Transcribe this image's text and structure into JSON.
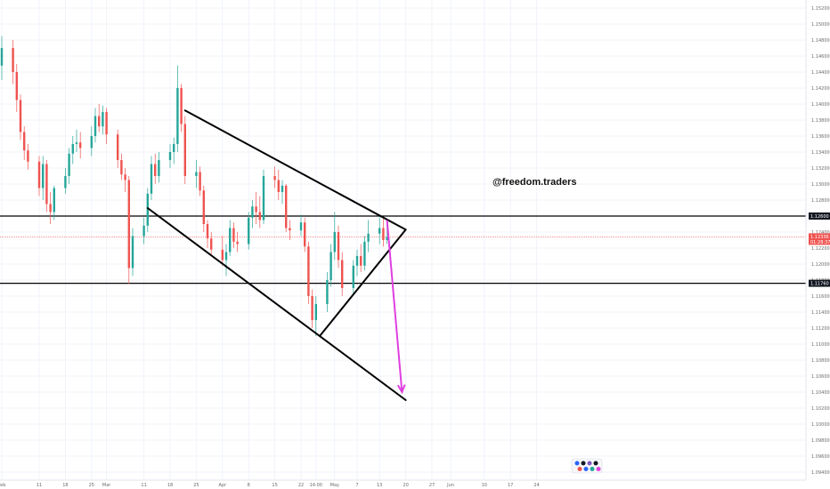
{
  "watermark": "@freedom.traders",
  "chart_data": {
    "type": "candlestick",
    "x_axis": {
      "ticks": [
        {
          "label": "Feb",
          "date": "2019-02-01"
        },
        {
          "label": "11",
          "date": "2019-02-11"
        },
        {
          "label": "18",
          "date": "2019-02-18"
        },
        {
          "label": "25",
          "date": "2019-02-25"
        },
        {
          "label": "Mar",
          "date": "2019-03-01"
        },
        {
          "label": "11",
          "date": "2019-03-11"
        },
        {
          "label": "18",
          "date": "2019-03-18"
        },
        {
          "label": "25",
          "date": "2019-03-25"
        },
        {
          "label": "Apr",
          "date": "2019-04-01"
        },
        {
          "label": "8",
          "date": "2019-04-08"
        },
        {
          "label": "15",
          "date": "2019-04-15"
        },
        {
          "label": "22",
          "date": "2019-04-22"
        },
        {
          "label": "14:00",
          "date": "2019-04-26"
        },
        {
          "label": "May",
          "date": "2019-05-01"
        },
        {
          "label": "7",
          "date": "2019-05-07"
        },
        {
          "label": "13",
          "date": "2019-05-13"
        },
        {
          "label": "20",
          "date": "2019-05-20"
        },
        {
          "label": "27",
          "date": "2019-05-27"
        },
        {
          "label": "Jun",
          "date": "2019-06-01"
        },
        {
          "label": "10",
          "date": "2019-06-10"
        },
        {
          "label": "17",
          "date": "2019-06-17"
        },
        {
          "label": "24",
          "date": "2019-06-24"
        }
      ]
    },
    "y_axis": {
      "range": [
        1.093,
        1.153
      ],
      "ticks": [
        "1.15200",
        "1.15000",
        "1.14800",
        "1.14600",
        "1.14400",
        "1.14200",
        "1.14000",
        "1.13800",
        "1.13600",
        "1.13400",
        "1.13200",
        "1.13000",
        "1.12800",
        "1.12600",
        "1.12400",
        "1.12200",
        "1.12000",
        "1.11800",
        "1.11600",
        "1.11400",
        "1.11200",
        "1.11000",
        "1.10800",
        "1.10600",
        "1.10400",
        "1.10200",
        "1.10000",
        "1.09800",
        "1.09600",
        "1.09400"
      ]
    },
    "horizontal_levels": [
      {
        "price": 1.126,
        "label": "1.12600"
      },
      {
        "price": 1.1176,
        "label": "1.11760"
      }
    ],
    "current_price": {
      "price": 1.1234,
      "label": "1.12336",
      "timer": "01:28:37"
    },
    "trendlines": [
      {
        "from": {
          "date": "2019-03-22",
          "price": 1.1392
        },
        "to": {
          "date": "2019-05-20",
          "price": 1.1243
        }
      },
      {
        "from": {
          "date": "2019-03-12",
          "price": 1.127
        },
        "to": {
          "date": "2019-05-20",
          "price": 1.103
        }
      },
      {
        "from": {
          "date": "2019-04-27",
          "price": 1.111
        },
        "to": {
          "date": "2019-05-20",
          "price": 1.1243
        }
      }
    ],
    "projection_arrow": {
      "from": {
        "date": "2019-05-15",
        "price": 1.1255
      },
      "to": {
        "date": "2019-05-19",
        "price": 1.104
      },
      "color": "#e040e0"
    },
    "colors": {
      "up": "#26a69a",
      "down": "#ef5350",
      "grid": "#f0f3fa"
    },
    "ohlc": [
      [
        "2019-02-01",
        1.1448,
        1.1485,
        1.143,
        1.147
      ],
      [
        "2019-02-04",
        1.147,
        1.148,
        1.1425,
        1.144
      ],
      [
        "2019-02-05",
        1.144,
        1.145,
        1.139,
        1.1405
      ],
      [
        "2019-02-06",
        1.1405,
        1.1412,
        1.1355,
        1.1365
      ],
      [
        "2019-02-07",
        1.1365,
        1.1372,
        1.133,
        1.1342
      ],
      [
        "2019-02-08",
        1.1342,
        1.135,
        1.1318,
        1.1328
      ],
      [
        "2019-02-11",
        1.1328,
        1.1335,
        1.1285,
        1.1295
      ],
      [
        "2019-02-12",
        1.1295,
        1.1335,
        1.128,
        1.1325
      ],
      [
        "2019-02-13",
        1.1325,
        1.133,
        1.1265,
        1.1275
      ],
      [
        "2019-02-14",
        1.1275,
        1.129,
        1.125,
        1.1265
      ],
      [
        "2019-02-15",
        1.1265,
        1.1298,
        1.1255,
        1.1295
      ],
      [
        "2019-02-18",
        1.1295,
        1.132,
        1.1288,
        1.131
      ],
      [
        "2019-02-19",
        1.131,
        1.1345,
        1.13,
        1.1338
      ],
      [
        "2019-02-20",
        1.1338,
        1.136,
        1.1325,
        1.135
      ],
      [
        "2019-02-21",
        1.135,
        1.1368,
        1.134,
        1.1352
      ],
      [
        "2019-02-22",
        1.1352,
        1.1365,
        1.1332,
        1.1345
      ],
      [
        "2019-02-25",
        1.1345,
        1.1372,
        1.1335,
        1.136
      ],
      [
        "2019-02-26",
        1.136,
        1.1395,
        1.1352,
        1.1385
      ],
      [
        "2019-02-27",
        1.1385,
        1.14,
        1.1365,
        1.1372
      ],
      [
        "2019-02-28",
        1.1372,
        1.1398,
        1.1362,
        1.139
      ],
      [
        "2019-03-01",
        1.139,
        1.1395,
        1.135,
        1.1362
      ],
      [
        "2019-03-04",
        1.1362,
        1.1368,
        1.132,
        1.133
      ],
      [
        "2019-03-05",
        1.133,
        1.1338,
        1.1305,
        1.1312
      ],
      [
        "2019-03-06",
        1.1312,
        1.132,
        1.129,
        1.1305
      ],
      [
        "2019-03-07",
        1.1305,
        1.131,
        1.1175,
        1.1195
      ],
      [
        "2019-03-08",
        1.1195,
        1.1245,
        1.1185,
        1.1235
      ],
      [
        "2019-03-11",
        1.1235,
        1.1258,
        1.1225,
        1.1248
      ],
      [
        "2019-03-12",
        1.1248,
        1.1295,
        1.124,
        1.1288
      ],
      [
        "2019-03-13",
        1.1288,
        1.1335,
        1.128,
        1.1325
      ],
      [
        "2019-03-14",
        1.1325,
        1.1338,
        1.13,
        1.131
      ],
      [
        "2019-03-15",
        1.131,
        1.134,
        1.1302,
        1.133
      ],
      [
        "2019-03-18",
        1.133,
        1.135,
        1.132,
        1.134
      ],
      [
        "2019-03-19",
        1.134,
        1.1358,
        1.1325,
        1.135
      ],
      [
        "2019-03-20",
        1.135,
        1.1448,
        1.134,
        1.142
      ],
      [
        "2019-03-21",
        1.142,
        1.1425,
        1.1365,
        1.1375
      ],
      [
        "2019-03-22",
        1.1375,
        1.1385,
        1.13,
        1.131
      ],
      [
        "2019-03-25",
        1.131,
        1.133,
        1.1295,
        1.1315
      ],
      [
        "2019-03-26",
        1.1315,
        1.1322,
        1.1285,
        1.1292
      ],
      [
        "2019-03-27",
        1.1292,
        1.1298,
        1.124,
        1.125
      ],
      [
        "2019-03-28",
        1.125,
        1.1255,
        1.122,
        1.1232
      ],
      [
        "2019-03-29",
        1.1232,
        1.124,
        1.121,
        1.1218
      ],
      [
        "2019-04-01",
        1.1218,
        1.1235,
        1.1198,
        1.1205
      ],
      [
        "2019-04-02",
        1.1205,
        1.1225,
        1.1185,
        1.1215
      ],
      [
        "2019-04-03",
        1.1215,
        1.1255,
        1.121,
        1.1245
      ],
      [
        "2019-04-04",
        1.1245,
        1.1252,
        1.122,
        1.1228
      ],
      [
        "2019-04-05",
        1.1228,
        1.124,
        1.1215,
        1.1225
      ],
      [
        "2019-04-08",
        1.1225,
        1.1265,
        1.1218,
        1.1258
      ],
      [
        "2019-04-09",
        1.1258,
        1.128,
        1.1245,
        1.1272
      ],
      [
        "2019-04-10",
        1.1272,
        1.129,
        1.125,
        1.1265
      ],
      [
        "2019-04-11",
        1.1265,
        1.1285,
        1.1245,
        1.1255
      ],
      [
        "2019-04-12",
        1.1255,
        1.1318,
        1.125,
        1.131
      ],
      [
        "2019-04-15",
        1.131,
        1.1322,
        1.1295,
        1.1305
      ],
      [
        "2019-04-16",
        1.1305,
        1.1318,
        1.128,
        1.129
      ],
      [
        "2019-04-17",
        1.129,
        1.1305,
        1.1275,
        1.1298
      ],
      [
        "2019-04-18",
        1.1298,
        1.13,
        1.124,
        1.1245
      ],
      [
        "2019-04-19",
        1.1245,
        1.1255,
        1.123,
        1.1242
      ],
      [
        "2019-04-22",
        1.1242,
        1.1262,
        1.1235,
        1.1252
      ],
      [
        "2019-04-23",
        1.1252,
        1.1258,
        1.1215,
        1.1222
      ],
      [
        "2019-04-24",
        1.1222,
        1.1228,
        1.115,
        1.116
      ],
      [
        "2019-04-25",
        1.116,
        1.1168,
        1.112,
        1.113
      ],
      [
        "2019-04-26",
        1.113,
        1.116,
        1.111,
        1.115
      ],
      [
        "2019-04-29",
        1.115,
        1.119,
        1.114,
        1.118
      ],
      [
        "2019-04-30",
        1.118,
        1.1225,
        1.1172,
        1.1215
      ],
      [
        "2019-05-01",
        1.1215,
        1.1265,
        1.1205,
        1.124
      ],
      [
        "2019-05-02",
        1.124,
        1.1248,
        1.1195,
        1.1205
      ],
      [
        "2019-05-03",
        1.1205,
        1.1215,
        1.116,
        1.117
      ],
      [
        "2019-05-06",
        1.117,
        1.1205,
        1.1162,
        1.1198
      ],
      [
        "2019-05-07",
        1.1198,
        1.1218,
        1.1185,
        1.121
      ],
      [
        "2019-05-08",
        1.121,
        1.1225,
        1.119,
        1.1198
      ],
      [
        "2019-05-09",
        1.1198,
        1.1235,
        1.1192,
        1.1228
      ],
      [
        "2019-05-10",
        1.1228,
        1.1255,
        1.1215,
        1.1238
      ],
      [
        "2019-05-13",
        1.1238,
        1.1262,
        1.1225,
        1.1245
      ],
      [
        "2019-05-14",
        1.1245,
        1.1258,
        1.1222,
        1.123
      ],
      [
        "2019-05-15",
        1.123,
        1.125,
        1.1225,
        1.1234
      ]
    ]
  }
}
